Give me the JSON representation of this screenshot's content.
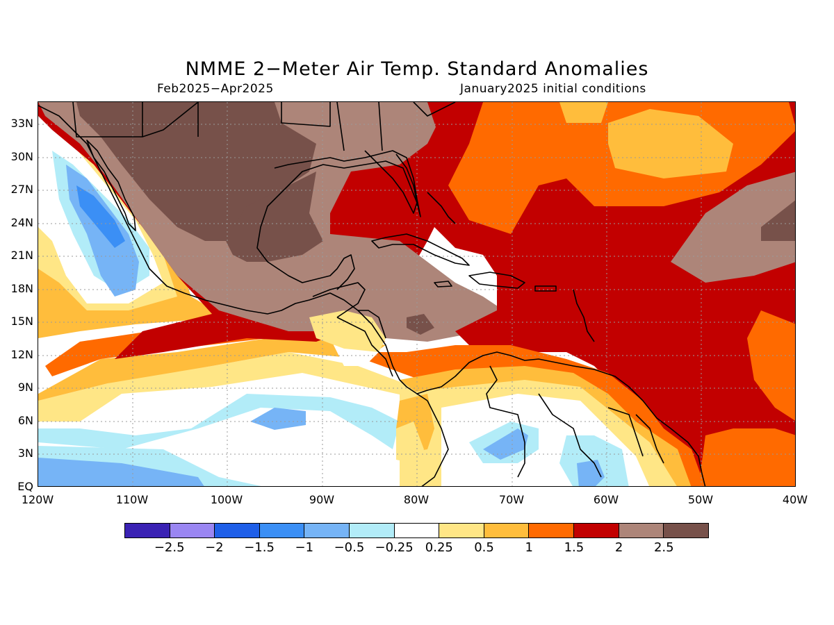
{
  "title": "NMME 2−Meter Air Temp. Standard Anomalies",
  "subtitle_left": "Feb2025−Apr2025",
  "subtitle_right": "January2025 initial conditions",
  "lat_labels": [
    "33N",
    "30N",
    "27N",
    "24N",
    "21N",
    "18N",
    "15N",
    "12N",
    "9N",
    "6N",
    "3N",
    "EQ"
  ],
  "lon_labels": [
    "120W",
    "110W",
    "100W",
    "90W",
    "80W",
    "70W",
    "60W",
    "50W",
    "40W"
  ],
  "colorbar": {
    "colors": [
      "#3a22b4",
      "#9a86f2",
      "#1f5fe8",
      "#3b8ff5",
      "#76b4f6",
      "#b2ecf8",
      "#ffffff",
      "#ffe686",
      "#ffbd3c",
      "#ff6a00",
      "#c20000",
      "#ad8579",
      "#77514a"
    ],
    "labels": [
      "−2.5",
      "−2",
      "−1.5",
      "−1",
      "−0.5",
      "−0.25",
      "0.25",
      "0.5",
      "1",
      "1.5",
      "2",
      "2.5"
    ]
  }
}
